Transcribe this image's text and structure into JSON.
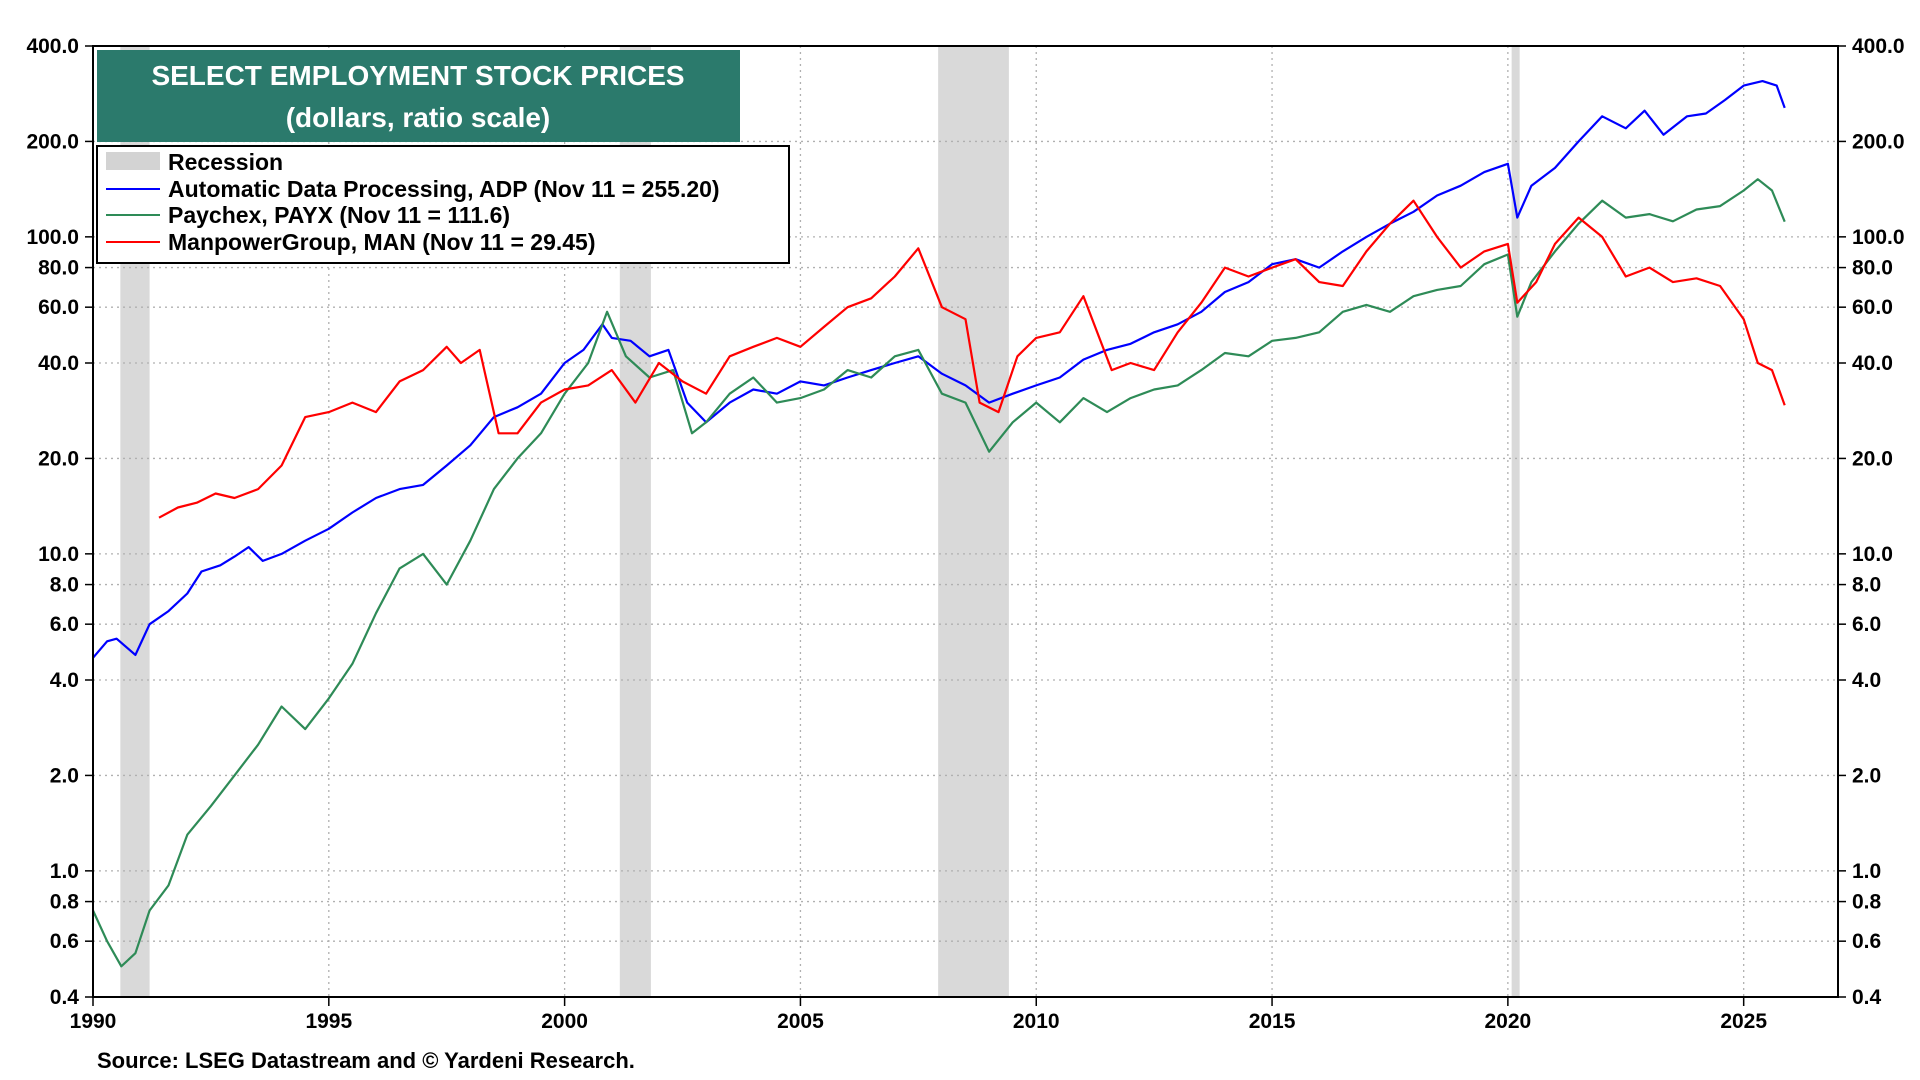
{
  "chart_data": {
    "type": "line",
    "title": "SELECT EMPLOYMENT STOCK PRICES",
    "subtitle": "(dollars, ratio scale)",
    "source": "Source: LSEG Datastream and © Yardeni Research.",
    "y_scale": "log",
    "ylim": [
      0.4,
      400
    ],
    "xlim": [
      1990,
      2027
    ],
    "grid": true,
    "legend_position": "top-left",
    "x_ticks": [
      "1990",
      "1995",
      "2000",
      "2005",
      "2010",
      "2015",
      "2020",
      "2025"
    ],
    "y_ticks": [
      "400.0",
      "200.0",
      "100.0",
      "80.0",
      "60.0",
      "40.0",
      "20.0",
      "10.0",
      "8.0",
      "6.0",
      "4.0",
      "2.0",
      "1.0",
      "0.8",
      "0.6",
      "0.4"
    ],
    "recession_label": "Recession",
    "recessions": [
      [
        1990.58,
        1991.2
      ],
      [
        2001.17,
        2001.83
      ],
      [
        2007.92,
        2009.42
      ],
      [
        2020.08,
        2020.25
      ]
    ],
    "series": [
      {
        "name": "Automatic Data Processing, ADP (Nov 11 = 255.20)",
        "color": "#0000ff",
        "points": [
          [
            1990.0,
            4.7
          ],
          [
            1990.3,
            5.3
          ],
          [
            1990.5,
            5.4
          ],
          [
            1990.9,
            4.8
          ],
          [
            1991.2,
            6.0
          ],
          [
            1991.6,
            6.6
          ],
          [
            1992.0,
            7.5
          ],
          [
            1992.3,
            8.8
          ],
          [
            1992.7,
            9.2
          ],
          [
            1993.0,
            9.8
          ],
          [
            1993.3,
            10.5
          ],
          [
            1993.6,
            9.5
          ],
          [
            1994.0,
            10.0
          ],
          [
            1994.5,
            11.0
          ],
          [
            1995.0,
            12.0
          ],
          [
            1995.5,
            13.5
          ],
          [
            1996.0,
            15.0
          ],
          [
            1996.5,
            16.0
          ],
          [
            1997.0,
            16.5
          ],
          [
            1997.5,
            19.0
          ],
          [
            1998.0,
            22.0
          ],
          [
            1998.5,
            27.0
          ],
          [
            1999.0,
            29.0
          ],
          [
            1999.5,
            32.0
          ],
          [
            2000.0,
            40.0
          ],
          [
            2000.4,
            44.0
          ],
          [
            2000.8,
            53.0
          ],
          [
            2001.0,
            48.0
          ],
          [
            2001.4,
            47.0
          ],
          [
            2001.8,
            42.0
          ],
          [
            2002.2,
            44.0
          ],
          [
            2002.6,
            30.0
          ],
          [
            2003.0,
            26.0
          ],
          [
            2003.5,
            30.0
          ],
          [
            2004.0,
            33.0
          ],
          [
            2004.5,
            32.0
          ],
          [
            2005.0,
            35.0
          ],
          [
            2005.5,
            34.0
          ],
          [
            2006.0,
            36.0
          ],
          [
            2006.5,
            38.0
          ],
          [
            2007.0,
            40.0
          ],
          [
            2007.5,
            42.0
          ],
          [
            2008.0,
            37.0
          ],
          [
            2008.5,
            34.0
          ],
          [
            2009.0,
            30.0
          ],
          [
            2009.5,
            32.0
          ],
          [
            2010.0,
            34.0
          ],
          [
            2010.5,
            36.0
          ],
          [
            2011.0,
            41.0
          ],
          [
            2011.5,
            44.0
          ],
          [
            2012.0,
            46.0
          ],
          [
            2012.5,
            50.0
          ],
          [
            2013.0,
            53.0
          ],
          [
            2013.5,
            58.0
          ],
          [
            2014.0,
            67.0
          ],
          [
            2014.5,
            72.0
          ],
          [
            2015.0,
            82.0
          ],
          [
            2015.5,
            85.0
          ],
          [
            2016.0,
            80.0
          ],
          [
            2016.5,
            90.0
          ],
          [
            2017.0,
            100.0
          ],
          [
            2017.5,
            110.0
          ],
          [
            2018.0,
            120.0
          ],
          [
            2018.5,
            135.0
          ],
          [
            2019.0,
            145.0
          ],
          [
            2019.5,
            160.0
          ],
          [
            2020.0,
            170.0
          ],
          [
            2020.2,
            115.0
          ],
          [
            2020.5,
            145.0
          ],
          [
            2021.0,
            165.0
          ],
          [
            2021.5,
            200.0
          ],
          [
            2022.0,
            240.0
          ],
          [
            2022.5,
            220.0
          ],
          [
            2022.9,
            250.0
          ],
          [
            2023.3,
            210.0
          ],
          [
            2023.8,
            240.0
          ],
          [
            2024.2,
            245.0
          ],
          [
            2024.6,
            270.0
          ],
          [
            2025.0,
            300.0
          ],
          [
            2025.4,
            310.0
          ],
          [
            2025.7,
            300.0
          ],
          [
            2025.87,
            255.2
          ]
        ]
      },
      {
        "name": "Paychex, PAYX (Nov 11 = 111.6)",
        "color": "#2e8b57",
        "points": [
          [
            1990.0,
            0.75
          ],
          [
            1990.3,
            0.6
          ],
          [
            1990.6,
            0.5
          ],
          [
            1990.9,
            0.55
          ],
          [
            1991.2,
            0.75
          ],
          [
            1991.6,
            0.9
          ],
          [
            1992.0,
            1.3
          ],
          [
            1992.5,
            1.6
          ],
          [
            1993.0,
            2.0
          ],
          [
            1993.5,
            2.5
          ],
          [
            1994.0,
            3.3
          ],
          [
            1994.5,
            2.8
          ],
          [
            1995.0,
            3.5
          ],
          [
            1995.5,
            4.5
          ],
          [
            1996.0,
            6.5
          ],
          [
            1996.5,
            9.0
          ],
          [
            1997.0,
            10.0
          ],
          [
            1997.5,
            8.0
          ],
          [
            1998.0,
            11.0
          ],
          [
            1998.5,
            16.0
          ],
          [
            1999.0,
            20.0
          ],
          [
            1999.5,
            24.0
          ],
          [
            2000.0,
            32.0
          ],
          [
            2000.5,
            40.0
          ],
          [
            2000.9,
            58.0
          ],
          [
            2001.3,
            42.0
          ],
          [
            2001.8,
            36.0
          ],
          [
            2002.3,
            38.0
          ],
          [
            2002.7,
            24.0
          ],
          [
            2003.0,
            26.0
          ],
          [
            2003.5,
            32.0
          ],
          [
            2004.0,
            36.0
          ],
          [
            2004.5,
            30.0
          ],
          [
            2005.0,
            31.0
          ],
          [
            2005.5,
            33.0
          ],
          [
            2006.0,
            38.0
          ],
          [
            2006.5,
            36.0
          ],
          [
            2007.0,
            42.0
          ],
          [
            2007.5,
            44.0
          ],
          [
            2008.0,
            32.0
          ],
          [
            2008.5,
            30.0
          ],
          [
            2009.0,
            21.0
          ],
          [
            2009.5,
            26.0
          ],
          [
            2010.0,
            30.0
          ],
          [
            2010.5,
            26.0
          ],
          [
            2011.0,
            31.0
          ],
          [
            2011.5,
            28.0
          ],
          [
            2012.0,
            31.0
          ],
          [
            2012.5,
            33.0
          ],
          [
            2013.0,
            34.0
          ],
          [
            2013.5,
            38.0
          ],
          [
            2014.0,
            43.0
          ],
          [
            2014.5,
            42.0
          ],
          [
            2015.0,
            47.0
          ],
          [
            2015.5,
            48.0
          ],
          [
            2016.0,
            50.0
          ],
          [
            2016.5,
            58.0
          ],
          [
            2017.0,
            61.0
          ],
          [
            2017.5,
            58.0
          ],
          [
            2018.0,
            65.0
          ],
          [
            2018.5,
            68.0
          ],
          [
            2019.0,
            70.0
          ],
          [
            2019.5,
            82.0
          ],
          [
            2020.0,
            88.0
          ],
          [
            2020.2,
            56.0
          ],
          [
            2020.5,
            72.0
          ],
          [
            2021.0,
            90.0
          ],
          [
            2021.5,
            110.0
          ],
          [
            2022.0,
            130.0
          ],
          [
            2022.5,
            115.0
          ],
          [
            2023.0,
            118.0
          ],
          [
            2023.5,
            112.0
          ],
          [
            2024.0,
            122.0
          ],
          [
            2024.5,
            125.0
          ],
          [
            2025.0,
            140.0
          ],
          [
            2025.3,
            152.0
          ],
          [
            2025.6,
            140.0
          ],
          [
            2025.87,
            111.6
          ]
        ]
      },
      {
        "name": "ManpowerGroup, MAN (Nov 11 = 29.45)",
        "color": "#ff0000",
        "points": [
          [
            1991.4,
            13.0
          ],
          [
            1991.8,
            14.0
          ],
          [
            1992.2,
            14.5
          ],
          [
            1992.6,
            15.5
          ],
          [
            1993.0,
            15.0
          ],
          [
            1993.5,
            16.0
          ],
          [
            1994.0,
            19.0
          ],
          [
            1994.5,
            27.0
          ],
          [
            1995.0,
            28.0
          ],
          [
            1995.5,
            30.0
          ],
          [
            1996.0,
            28.0
          ],
          [
            1996.5,
            35.0
          ],
          [
            1997.0,
            38.0
          ],
          [
            1997.5,
            45.0
          ],
          [
            1997.8,
            40.0
          ],
          [
            1998.2,
            44.0
          ],
          [
            1998.6,
            24.0
          ],
          [
            1999.0,
            24.0
          ],
          [
            1999.5,
            30.0
          ],
          [
            2000.0,
            33.0
          ],
          [
            2000.5,
            34.0
          ],
          [
            2001.0,
            38.0
          ],
          [
            2001.5,
            30.0
          ],
          [
            2002.0,
            40.0
          ],
          [
            2002.5,
            35.0
          ],
          [
            2003.0,
            32.0
          ],
          [
            2003.5,
            42.0
          ],
          [
            2004.0,
            45.0
          ],
          [
            2004.5,
            48.0
          ],
          [
            2005.0,
            45.0
          ],
          [
            2005.5,
            52.0
          ],
          [
            2006.0,
            60.0
          ],
          [
            2006.5,
            64.0
          ],
          [
            2007.0,
            75.0
          ],
          [
            2007.5,
            92.0
          ],
          [
            2008.0,
            60.0
          ],
          [
            2008.5,
            55.0
          ],
          [
            2008.8,
            30.0
          ],
          [
            2009.2,
            28.0
          ],
          [
            2009.6,
            42.0
          ],
          [
            2010.0,
            48.0
          ],
          [
            2010.5,
            50.0
          ],
          [
            2011.0,
            65.0
          ],
          [
            2011.6,
            38.0
          ],
          [
            2012.0,
            40.0
          ],
          [
            2012.5,
            38.0
          ],
          [
            2013.0,
            50.0
          ],
          [
            2013.5,
            62.0
          ],
          [
            2014.0,
            80.0
          ],
          [
            2014.5,
            75.0
          ],
          [
            2015.0,
            80.0
          ],
          [
            2015.5,
            85.0
          ],
          [
            2016.0,
            72.0
          ],
          [
            2016.5,
            70.0
          ],
          [
            2017.0,
            90.0
          ],
          [
            2017.5,
            110.0
          ],
          [
            2018.0,
            130.0
          ],
          [
            2018.5,
            100.0
          ],
          [
            2019.0,
            80.0
          ],
          [
            2019.5,
            90.0
          ],
          [
            2020.0,
            95.0
          ],
          [
            2020.2,
            62.0
          ],
          [
            2020.6,
            72.0
          ],
          [
            2021.0,
            95.0
          ],
          [
            2021.5,
            115.0
          ],
          [
            2022.0,
            100.0
          ],
          [
            2022.5,
            75.0
          ],
          [
            2023.0,
            80.0
          ],
          [
            2023.5,
            72.0
          ],
          [
            2024.0,
            74.0
          ],
          [
            2024.5,
            70.0
          ],
          [
            2025.0,
            55.0
          ],
          [
            2025.3,
            40.0
          ],
          [
            2025.6,
            38.0
          ],
          [
            2025.87,
            29.45
          ]
        ]
      }
    ]
  }
}
